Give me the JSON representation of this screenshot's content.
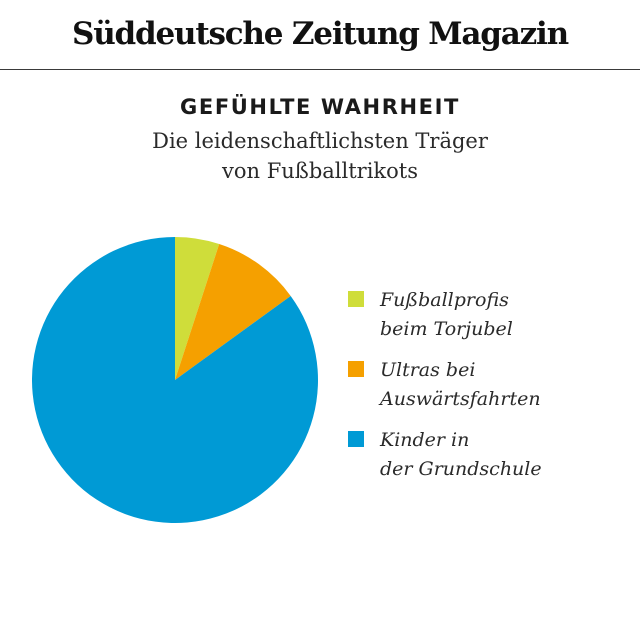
{
  "masthead": {
    "title": "Süddeutsche Zeitung Magazin"
  },
  "chart_data": {
    "type": "pie",
    "title": "GEFÜHLTE WAHRHEIT",
    "subtitle_lines": [
      "Die leidenschaftlichsten Träger",
      "von Fußballtrikots"
    ],
    "categories": [
      "Fußballprofis beim Torjubel",
      "Ultras bei Auswärtsfahrten",
      "Kinder in der Grundschule"
    ],
    "values": [
      5,
      10,
      85
    ],
    "colors": [
      "#cfdd3a",
      "#f5a000",
      "#009ad5"
    ],
    "legend": [
      {
        "lines": [
          "Fußballprofis",
          "beim Torjubel"
        ],
        "color": "#cfdd3a"
      },
      {
        "lines": [
          "Ultras bei",
          "Auswärtsfahrten"
        ],
        "color": "#f5a000"
      },
      {
        "lines": [
          "Kinder in",
          "der Grundschule"
        ],
        "color": "#009ad5"
      }
    ],
    "legend_position": "right"
  }
}
